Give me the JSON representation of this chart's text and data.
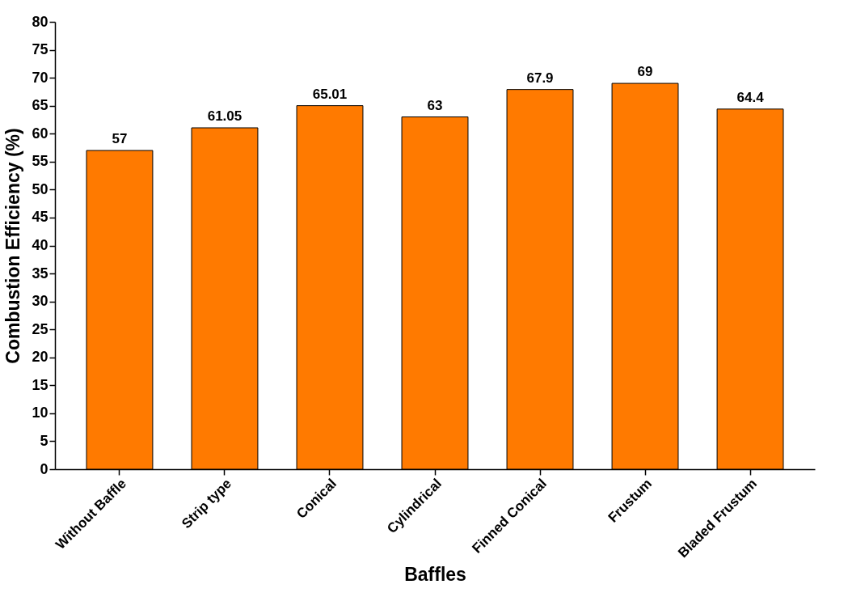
{
  "chart_data": {
    "type": "bar",
    "xlabel": "Baffles",
    "ylabel": "Combustion Efficiency (%)",
    "categories": [
      "Without Baffle",
      "Strip type",
      "Conical",
      "Cylindrical",
      "Finned Conical",
      "Frustum",
      "Bladed Frustum"
    ],
    "values": [
      57,
      61.05,
      65.01,
      63,
      67.9,
      69,
      64.4
    ],
    "color": "#ff7a00",
    "ylim": [
      0,
      80
    ],
    "yticks": [
      0,
      5,
      10,
      15,
      20,
      25,
      30,
      35,
      40,
      45,
      50,
      55,
      60,
      65,
      70,
      75,
      80
    ],
    "grid": false,
    "data_labels": true
  }
}
